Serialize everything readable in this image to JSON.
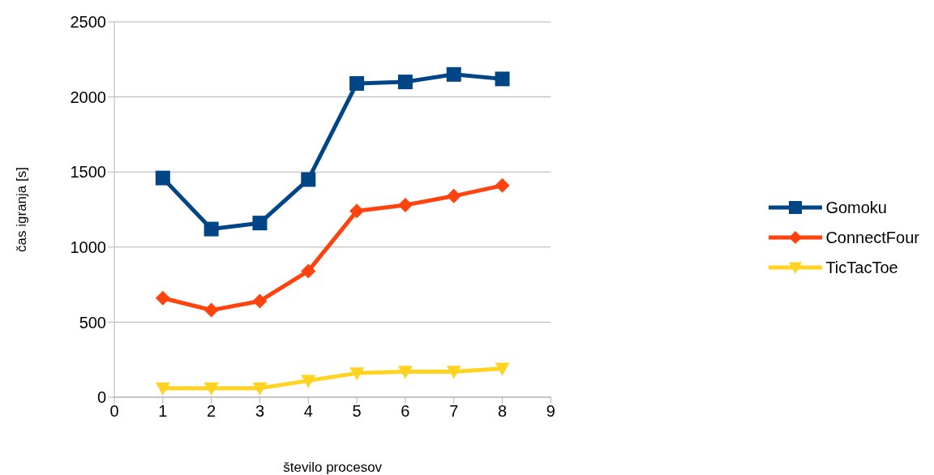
{
  "chart_data": {
    "type": "line",
    "xlabel": "število procesov",
    "ylabel": "čas igranja [s]",
    "x": [
      1,
      2,
      3,
      4,
      5,
      6,
      7,
      8
    ],
    "series": [
      {
        "name": "Gomoku",
        "color": "#004586",
        "marker": "square",
        "values": [
          1460,
          1120,
          1160,
          1450,
          2090,
          2100,
          2150,
          2120
        ]
      },
      {
        "name": "ConnectFour",
        "color": "#ff420e",
        "marker": "diamond",
        "values": [
          660,
          580,
          640,
          840,
          1240,
          1280,
          1340,
          1410
        ]
      },
      {
        "name": "TicTacToe",
        "color": "#ffd320",
        "marker": "triangle",
        "values": [
          60,
          60,
          60,
          110,
          160,
          170,
          170,
          190
        ]
      }
    ],
    "xlim": [
      0,
      9
    ],
    "xticks": [
      0,
      1,
      2,
      3,
      4,
      5,
      6,
      7,
      8,
      9
    ],
    "ylim": [
      0,
      2500
    ],
    "yticks": [
      0,
      500,
      1000,
      1500,
      2000,
      2500
    ],
    "grid": "y",
    "legend": "right",
    "line_style": "solid"
  }
}
